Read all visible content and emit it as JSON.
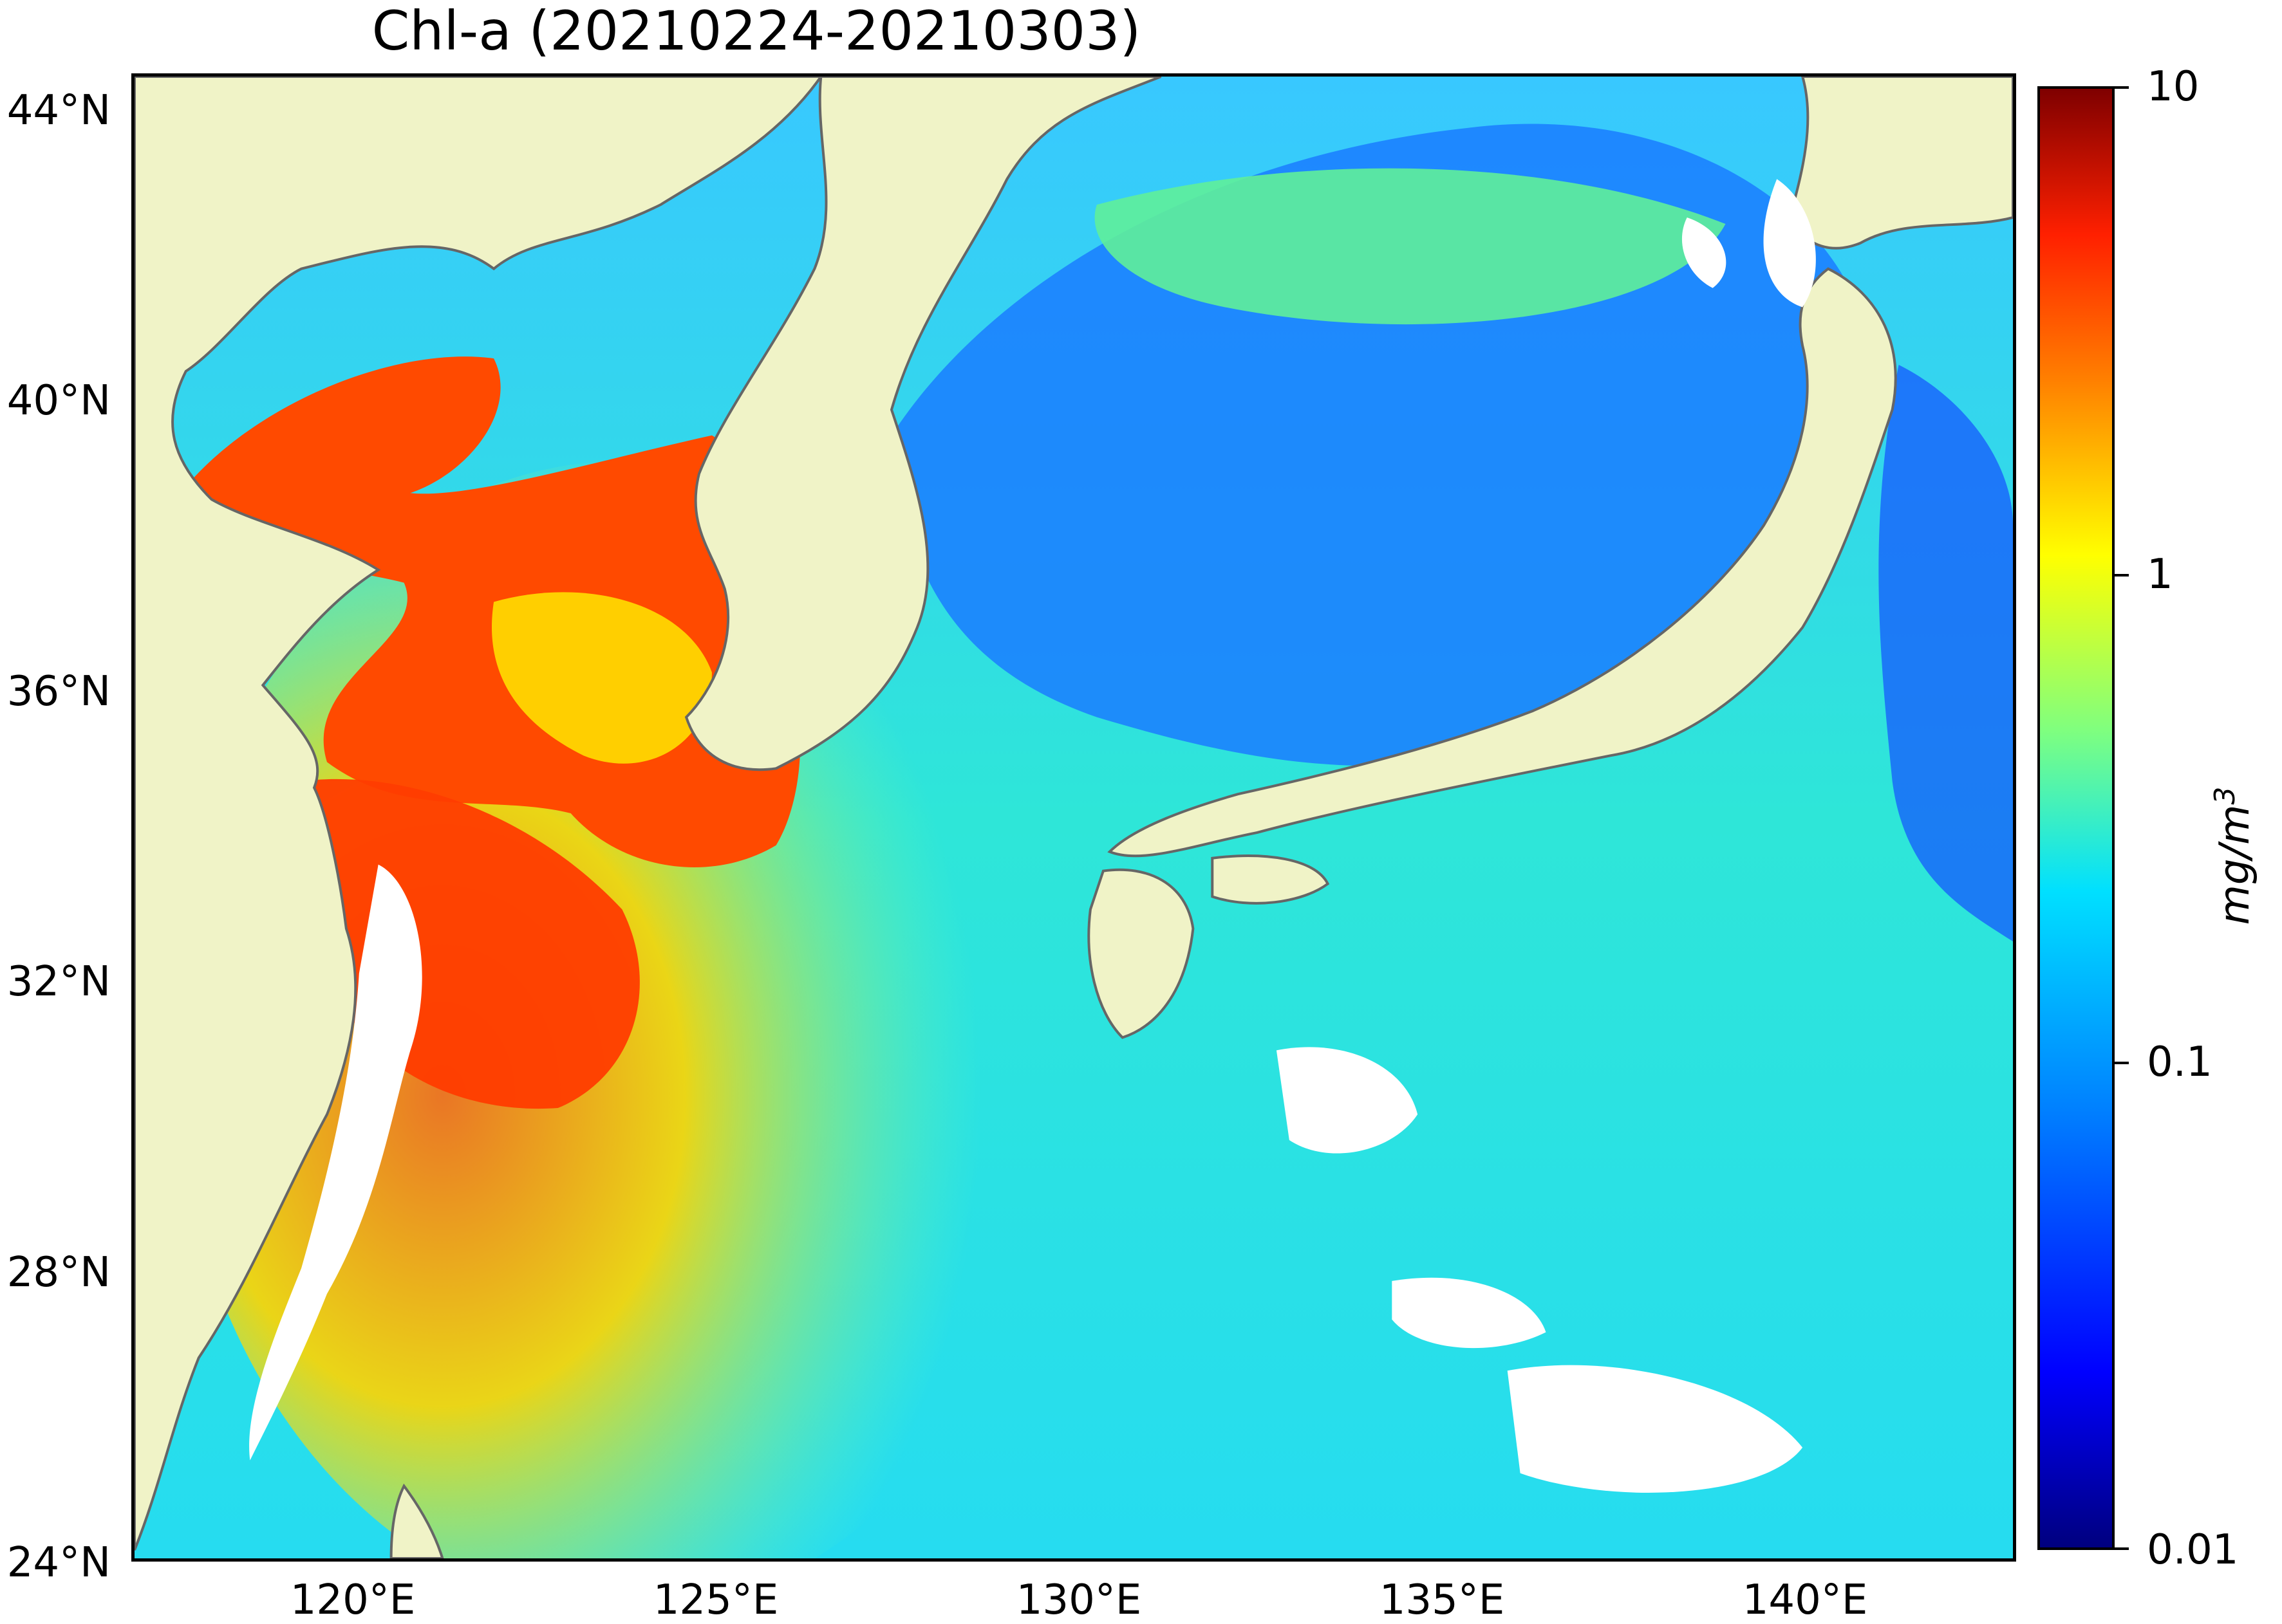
{
  "title": "Chl-a (20210224-20210303)",
  "map": {
    "projection": "equirectangular",
    "lon_range": [
      117,
      143
    ],
    "lat_range": [
      24,
      44.5
    ],
    "land_color": "#f0f3c7",
    "no_data_color": "#ffffff",
    "regions": [
      {
        "name": "bohai-yellow-sea",
        "chla_mg_m3": 3.5
      },
      {
        "name": "east-china-sea-shelf",
        "chla_mg_m3": 0.6
      },
      {
        "name": "sea-of-japan",
        "chla_mg_m3": 0.15
      },
      {
        "name": "north-pacific",
        "chla_mg_m3": 0.12
      }
    ]
  },
  "axes": {
    "lat_ticks": [
      "44°N",
      "40°N",
      "36°N",
      "32°N",
      "28°N",
      "24°N"
    ],
    "lon_ticks": [
      "120°E",
      "125°E",
      "130°E",
      "135°E",
      "140°E"
    ]
  },
  "colorbar": {
    "colormap": "jet",
    "scale": "log",
    "range": [
      0.01,
      10
    ],
    "tick_labels": [
      "10",
      "1",
      "0.1",
      "0.01"
    ],
    "unit_main": "mg/m",
    "unit_exp": "3"
  }
}
